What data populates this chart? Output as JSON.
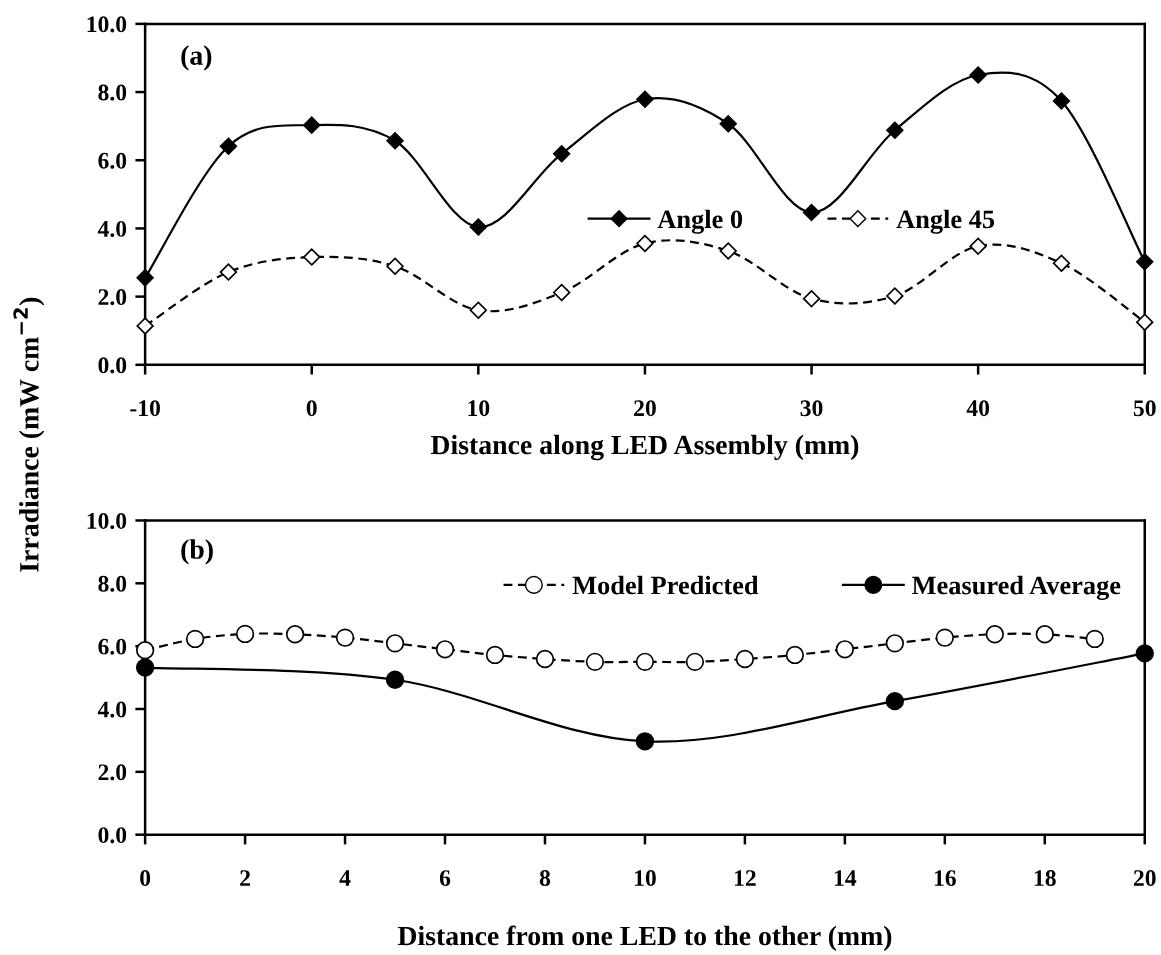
{
  "chart_data": [
    {
      "type": "line",
      "xlabel": "Distance along LED Assembly (mm)",
      "ylabel": "Irradiance (mW cm$^{−2}$)",
      "annotations": [
        "(a)"
      ],
      "x": [
        -10,
        -5,
        0,
        5,
        10,
        15,
        20,
        25,
        30,
        35,
        40,
        45,
        50
      ],
      "series": [
        {
          "name": "Angle 0",
          "color": "#000000",
          "marker": "diamond",
          "line_style": "solid",
          "values": [
            2.55,
            6.41,
            7.03,
            6.57,
            4.04,
            6.19,
            7.79,
            7.07,
            4.47,
            6.88,
            8.5,
            7.74,
            3.02
          ]
        },
        {
          "name": "Angle 45",
          "color": "#000000",
          "marker": "diamond",
          "line_style": "dashed",
          "values": [
            1.14,
            2.72,
            3.16,
            2.89,
            1.6,
            2.12,
            3.56,
            3.34,
            1.94,
            2.02,
            3.48,
            2.98,
            1.25
          ]
        }
      ],
      "xlim": [
        -10,
        50
      ],
      "xticks": [
        -10,
        0,
        10,
        20,
        30,
        40,
        50
      ],
      "ylim": [
        0,
        10
      ],
      "yticks": [
        {
          "value": 0,
          "label": "0.0"
        },
        {
          "value": 2,
          "label": "2.0"
        },
        {
          "value": 4,
          "label": "4.0"
        },
        {
          "value": 6,
          "label": "6.0"
        },
        {
          "value": 8,
          "label": "8.0"
        },
        {
          "value": 10,
          "label": "10.0"
        }
      ],
      "grid": false,
      "legend": "right"
    },
    {
      "type": "line",
      "xlabel": "Distance from one LED to the other (mm)",
      "annotations": [
        "(b)"
      ],
      "series": [
        {
          "name": "Model Predicted",
          "color": "#000000",
          "marker": "circle",
          "line_style": "dashed",
          "x": [
            0,
            1,
            2,
            3,
            4,
            5,
            6,
            7,
            8,
            9,
            10,
            11,
            12,
            13,
            14,
            15,
            16,
            17,
            18,
            19
          ],
          "values": [
            5.87,
            6.23,
            6.39,
            6.38,
            6.27,
            6.09,
            5.9,
            5.72,
            5.59,
            5.5,
            5.5,
            5.5,
            5.59,
            5.72,
            5.9,
            6.09,
            6.27,
            6.38,
            6.38,
            6.23
          ]
        },
        {
          "name": "Measured Average",
          "color": "#000000",
          "marker": "circle",
          "line_style": "solid",
          "x": [
            0,
            5,
            10,
            15,
            20
          ],
          "values": [
            5.32,
            4.93,
            2.97,
            4.25,
            5.77
          ]
        }
      ],
      "xlim": [
        0,
        20
      ],
      "xticks": [
        0,
        2,
        4,
        6,
        8,
        10,
        12,
        14,
        16,
        18,
        20
      ],
      "ylim": [
        0,
        10
      ],
      "yticks": [
        {
          "value": 0,
          "label": "0.0"
        },
        {
          "value": 2,
          "label": "2.0"
        },
        {
          "value": 4,
          "label": "4.0"
        },
        {
          "value": 6,
          "label": "6.0"
        },
        {
          "value": 8,
          "label": "8.0"
        },
        {
          "value": 10,
          "label": "10.0"
        }
      ],
      "grid": false,
      "legend": "top right"
    }
  ]
}
